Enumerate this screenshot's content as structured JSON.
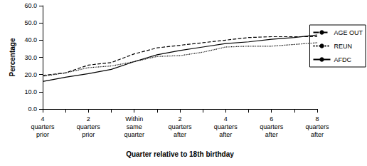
{
  "chart_data": {
    "type": "line",
    "x_label": "Quarter relative to 18th birthday",
    "y_label": "Percentage",
    "categories": [
      "4 quarters prior",
      null,
      "2 quarters prior",
      null,
      "Within same quarter",
      null,
      "2 quarters after",
      null,
      "4 quarters after",
      null,
      "6 quarters after",
      null,
      "8 quarters after"
    ],
    "series": [
      {
        "name": "AGE OUT",
        "color": "#000000",
        "line_style": "dashed",
        "values": [
          19.5,
          21.0,
          25.5,
          27.0,
          32.0,
          35.5,
          37.0,
          38.5,
          40.0,
          41.5,
          42.0,
          42.0,
          42.0
        ]
      },
      {
        "name": "REUN",
        "color": "#000000",
        "line_style": "dotted",
        "values": [
          19.0,
          21.0,
          24.0,
          25.0,
          27.5,
          30.5,
          31.0,
          33.0,
          36.0,
          36.5,
          36.5,
          37.5,
          38.5
        ]
      },
      {
        "name": "AFDC",
        "color": "#000000",
        "line_style": "solid",
        "values": [
          16.0,
          18.5,
          20.5,
          23.0,
          27.5,
          31.5,
          34.0,
          36.0,
          38.0,
          39.0,
          40.5,
          41.5,
          43.0
        ]
      }
    ],
    "ylim": [
      0,
      60
    ],
    "yticks": [
      {
        "value": 0,
        "label": "0.0"
      },
      {
        "value": 10,
        "label": "10.0"
      },
      {
        "value": 20,
        "label": "20.0"
      },
      {
        "value": 30,
        "label": "30.0"
      },
      {
        "value": 40,
        "label": "40.0"
      },
      {
        "value": 50,
        "label": "50.0"
      },
      {
        "value": 60,
        "label": "60.0"
      }
    ],
    "grid": false,
    "legend": "right"
  }
}
